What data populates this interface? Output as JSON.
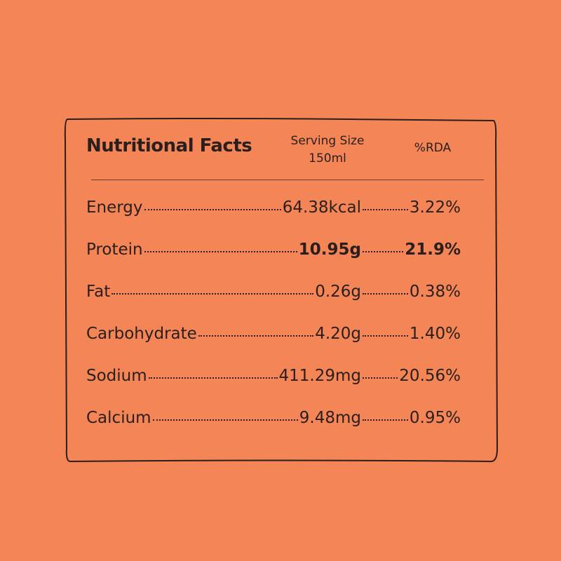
{
  "header": {
    "title": "Nutritional Facts",
    "serving_size": "Serving Size",
    "serving_amount": "150ml",
    "rda": "%RDA"
  },
  "table": {
    "rows": [
      [
        "Energy",
        "64.38kcal",
        "3.22%"
      ],
      [
        "Protein",
        "10.95g",
        "21.9%"
      ],
      [
        "Fat",
        "0.26g",
        "0.38%"
      ],
      [
        "Carbohydrate",
        "4.20g",
        "1.40%"
      ],
      [
        "Sodium",
        "411.29mg",
        "20.56%"
      ],
      [
        "Calcium",
        "9.48mg",
        "0.95%"
      ]
    ]
  }
}
